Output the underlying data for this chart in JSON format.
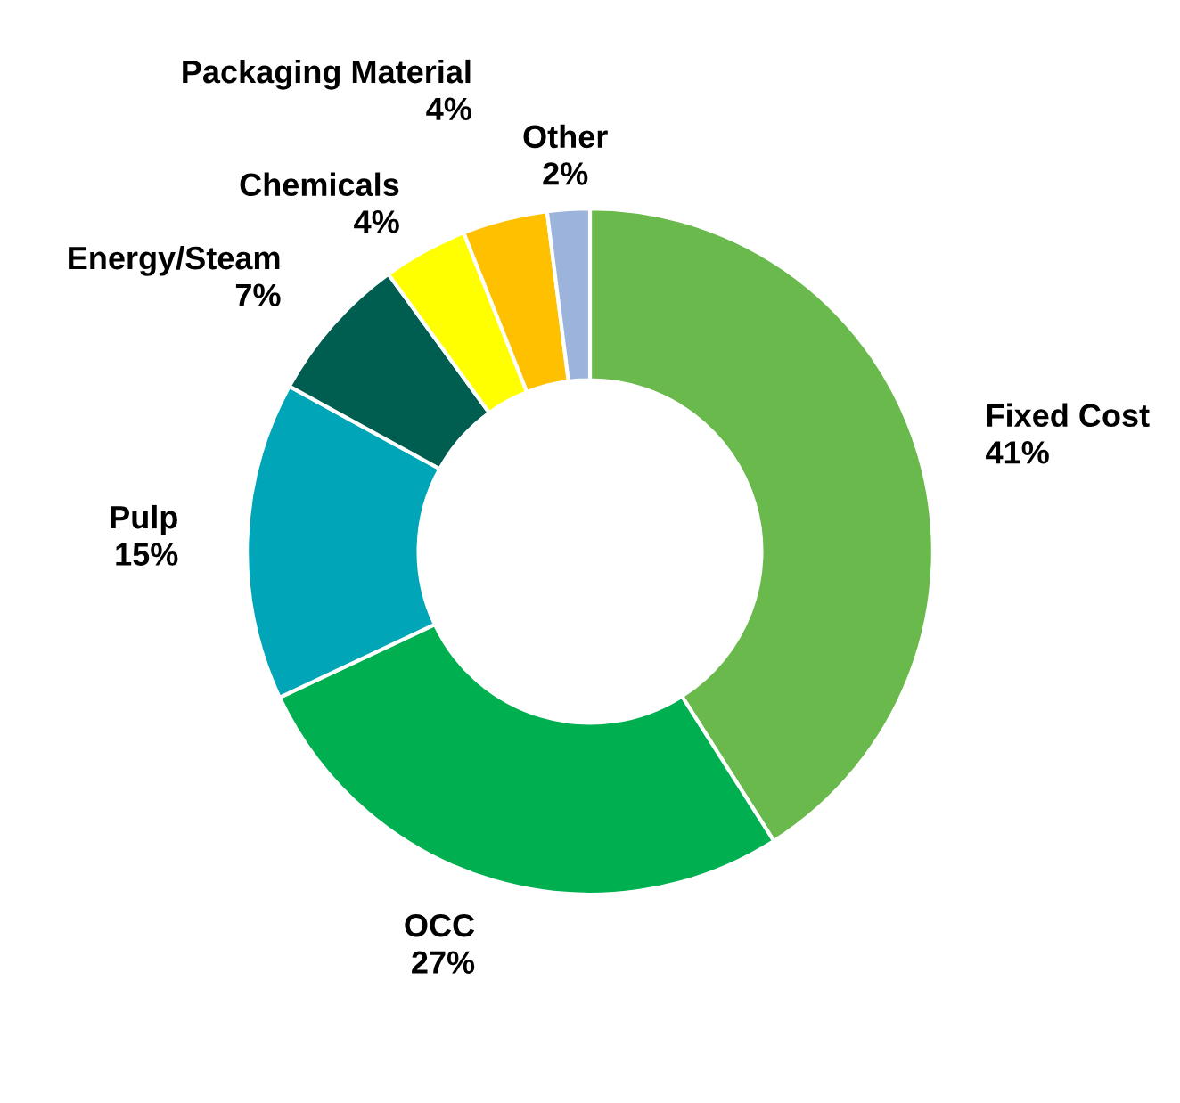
{
  "chart_data": {
    "type": "donut",
    "categories": [
      "Fixed Cost",
      "OCC",
      "Pulp",
      "Energy/Steam",
      "Chemicals",
      "Packaging Material",
      "Other"
    ],
    "values": [
      41,
      27,
      15,
      7,
      4,
      4,
      2
    ],
    "value_labels": [
      "41%",
      "27%",
      "15%",
      "7%",
      "4%",
      "4%",
      "2%"
    ],
    "colors": [
      "#6ab94c",
      "#00b050",
      "#00a5b8",
      "#005e50",
      "#ffff00",
      "#ffc000",
      "#9cb3dc"
    ]
  }
}
